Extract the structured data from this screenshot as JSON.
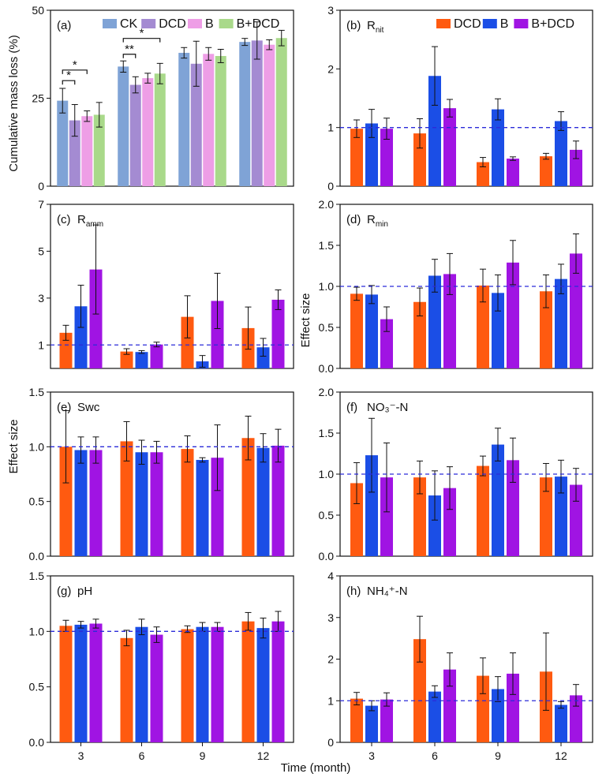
{
  "figure": {
    "xlabel_bottom": "Time (month)",
    "ylabel_left_top": "Cumulative mass loss (%)",
    "ylabel_effect_1": "Effect size",
    "ylabel_effect_2": "Effect size"
  },
  "colors": {
    "CK": "#7fa3d6",
    "DCD_a": "#a48bd2",
    "B_a": "#ee9ee6",
    "BDCD_a": "#a9d98a",
    "DCD": "#ff5a10",
    "B": "#1b4ee6",
    "BDCD": "#a014e3",
    "ref": "#2b2bd9"
  },
  "chart_data": [
    {
      "id": "a",
      "type": "bar",
      "panel_label": "(a)",
      "title_main": "",
      "title_sub": "",
      "categories": [
        "3",
        "6",
        "9",
        "12"
      ],
      "ylim": [
        0,
        50
      ],
      "yticks": [
        0,
        25,
        50
      ],
      "ref_line": null,
      "series": [
        {
          "name": "CK",
          "color_key": "CK",
          "values": [
            24.3,
            34.0,
            37.9,
            41.0
          ],
          "errors": [
            3.5,
            1.6,
            1.5,
            1.0
          ]
        },
        {
          "name": "DCD",
          "color_key": "DCD_a",
          "values": [
            18.7,
            28.8,
            34.8,
            41.4
          ],
          "errors": [
            4.5,
            2.3,
            6.4,
            5.3
          ]
        },
        {
          "name": "B",
          "color_key": "B_a",
          "values": [
            19.9,
            30.7,
            37.6,
            40.2
          ],
          "errors": [
            1.5,
            1.4,
            1.8,
            1.4
          ]
        },
        {
          "name": "B+DCD",
          "color_key": "BDCD_a",
          "values": [
            20.3,
            32.0,
            37.0,
            42.1
          ],
          "errors": [
            3.5,
            2.9,
            1.9,
            2.2
          ]
        }
      ],
      "significance": [
        {
          "text": "*",
          "group": 0,
          "from": 0,
          "to": 2,
          "value": 33.0
        },
        {
          "text": "*",
          "group": 0,
          "from": 0,
          "to": 1,
          "value": 30.0
        },
        {
          "text": "*",
          "group": 1,
          "from": 0,
          "to": 3,
          "value": 42.0
        },
        {
          "text": "**",
          "group": 1,
          "from": 0,
          "to": 1,
          "value": 37.5
        }
      ]
    },
    {
      "id": "b",
      "type": "bar",
      "panel_label": "(b)",
      "title_main": "R",
      "title_sub": "nit",
      "categories": [
        "3",
        "6",
        "9",
        "12"
      ],
      "ylim": [
        0,
        3
      ],
      "yticks": [
        0,
        1,
        2,
        3
      ],
      "ref_line": 1,
      "series": [
        {
          "name": "DCD",
          "color_key": "DCD",
          "values": [
            0.98,
            0.9,
            0.41,
            0.51
          ],
          "errors": [
            0.15,
            0.25,
            0.08,
            0.05
          ]
        },
        {
          "name": "B",
          "color_key": "B",
          "values": [
            1.07,
            1.88,
            1.31,
            1.11
          ],
          "errors": [
            0.24,
            0.5,
            0.18,
            0.16
          ]
        },
        {
          "name": "B+DCD",
          "color_key": "BDCD",
          "values": [
            0.98,
            1.33,
            0.47,
            0.62
          ],
          "errors": [
            0.18,
            0.15,
            0.03,
            0.15
          ]
        }
      ]
    },
    {
      "id": "c",
      "type": "bar",
      "panel_label": "(c)",
      "title_main": "R",
      "title_sub": "amm",
      "categories": [
        "3",
        "6",
        "9",
        "12"
      ],
      "ylim": [
        0,
        7
      ],
      "yticks": [
        1,
        3,
        5,
        7
      ],
      "ref_line": 1,
      "series": [
        {
          "name": "DCD",
          "color_key": "DCD",
          "values": [
            1.52,
            0.72,
            2.2,
            1.72
          ],
          "errors": [
            0.32,
            0.12,
            0.9,
            0.9
          ]
        },
        {
          "name": "B",
          "color_key": "B",
          "values": [
            2.65,
            0.7,
            0.3,
            0.9
          ],
          "errors": [
            0.9,
            0.06,
            0.25,
            0.38
          ]
        },
        {
          "name": "B+DCD",
          "color_key": "BDCD",
          "values": [
            4.22,
            1.02,
            2.88,
            2.93
          ],
          "errors": [
            1.9,
            0.1,
            1.18,
            0.42
          ]
        }
      ]
    },
    {
      "id": "d",
      "type": "bar",
      "panel_label": "(d)",
      "title_main": "R",
      "title_sub": "min",
      "categories": [
        "3",
        "6",
        "9",
        "12"
      ],
      "ylim": [
        0,
        2
      ],
      "yticks": [
        0,
        0.5,
        1.0,
        1.5,
        2.0
      ],
      "ref_line": 1,
      "series": [
        {
          "name": "DCD",
          "color_key": "DCD",
          "values": [
            0.91,
            0.81,
            1.01,
            0.94
          ],
          "errors": [
            0.08,
            0.17,
            0.2,
            0.2
          ]
        },
        {
          "name": "B",
          "color_key": "B",
          "values": [
            0.9,
            1.13,
            0.92,
            1.09
          ],
          "errors": [
            0.11,
            0.2,
            0.22,
            0.18
          ]
        },
        {
          "name": "B+DCD",
          "color_key": "BDCD",
          "values": [
            0.6,
            1.15,
            1.29,
            1.4
          ],
          "errors": [
            0.15,
            0.25,
            0.27,
            0.24
          ]
        }
      ]
    },
    {
      "id": "e",
      "type": "bar",
      "panel_label": "(e)",
      "title_main": "Swc",
      "title_sub": "",
      "categories": [
        "3",
        "6",
        "9",
        "12"
      ],
      "ylim": [
        0,
        1.5
      ],
      "yticks": [
        0,
        0.5,
        1.0,
        1.5
      ],
      "ref_line": 1,
      "series": [
        {
          "name": "DCD",
          "color_key": "DCD",
          "values": [
            1.0,
            1.05,
            0.98,
            1.08
          ],
          "errors": [
            0.33,
            0.18,
            0.12,
            0.2
          ]
        },
        {
          "name": "B",
          "color_key": "B",
          "values": [
            0.97,
            0.95,
            0.88,
            0.99
          ],
          "errors": [
            0.12,
            0.11,
            0.02,
            0.13
          ]
        },
        {
          "name": "B+DCD",
          "color_key": "BDCD",
          "values": [
            0.97,
            0.95,
            0.9,
            1.01
          ],
          "errors": [
            0.12,
            0.1,
            0.3,
            0.15
          ]
        }
      ]
    },
    {
      "id": "f",
      "type": "bar",
      "panel_label": "(f)",
      "title_main": "NO₃⁻-N",
      "title_sub": "",
      "categories": [
        "3",
        "6",
        "9",
        "12"
      ],
      "ylim": [
        0,
        2
      ],
      "yticks": [
        0,
        0.5,
        1.0,
        1.5,
        2.0
      ],
      "ref_line": 1,
      "series": [
        {
          "name": "DCD",
          "color_key": "DCD",
          "values": [
            0.89,
            0.96,
            1.1,
            0.96
          ],
          "errors": [
            0.25,
            0.2,
            0.12,
            0.17
          ]
        },
        {
          "name": "B",
          "color_key": "B",
          "values": [
            1.23,
            0.74,
            1.36,
            0.97
          ],
          "errors": [
            0.45,
            0.3,
            0.2,
            0.2
          ]
        },
        {
          "name": "B+DCD",
          "color_key": "BDCD",
          "values": [
            0.96,
            0.83,
            1.17,
            0.87
          ],
          "errors": [
            0.42,
            0.26,
            0.27,
            0.2
          ]
        }
      ]
    },
    {
      "id": "g",
      "type": "bar",
      "panel_label": "(g)",
      "title_main": "pH",
      "title_sub": "",
      "categories": [
        "3",
        "6",
        "9",
        "12"
      ],
      "ylim": [
        0,
        1.5
      ],
      "yticks": [
        0,
        0.5,
        1.0,
        1.5
      ],
      "ref_line": 1,
      "series": [
        {
          "name": "DCD",
          "color_key": "DCD",
          "values": [
            1.05,
            0.94,
            1.02,
            1.09
          ],
          "errors": [
            0.05,
            0.07,
            0.03,
            0.08
          ]
        },
        {
          "name": "B",
          "color_key": "B",
          "values": [
            1.06,
            1.04,
            1.04,
            1.03
          ],
          "errors": [
            0.03,
            0.07,
            0.04,
            0.09
          ]
        },
        {
          "name": "B+DCD",
          "color_key": "BDCD",
          "values": [
            1.07,
            0.97,
            1.04,
            1.09
          ],
          "errors": [
            0.04,
            0.07,
            0.04,
            0.09
          ]
        }
      ]
    },
    {
      "id": "h",
      "type": "bar",
      "panel_label": "(h)",
      "title_main": "NH₄⁺-N",
      "title_sub": "",
      "categories": [
        "3",
        "6",
        "9",
        "12"
      ],
      "ylim": [
        0,
        4
      ],
      "yticks": [
        0,
        1,
        2,
        3,
        4
      ],
      "ref_line": 1,
      "series": [
        {
          "name": "DCD",
          "color_key": "DCD",
          "values": [
            1.05,
            2.48,
            1.6,
            1.7
          ],
          "errors": [
            0.15,
            0.55,
            0.43,
            0.93
          ]
        },
        {
          "name": "B",
          "color_key": "B",
          "values": [
            0.88,
            1.22,
            1.28,
            0.9
          ],
          "errors": [
            0.12,
            0.14,
            0.3,
            0.08
          ]
        },
        {
          "name": "B+DCD",
          "color_key": "BDCD",
          "values": [
            1.03,
            1.75,
            1.65,
            1.13
          ],
          "errors": [
            0.16,
            0.4,
            0.5,
            0.26
          ]
        }
      ]
    }
  ]
}
